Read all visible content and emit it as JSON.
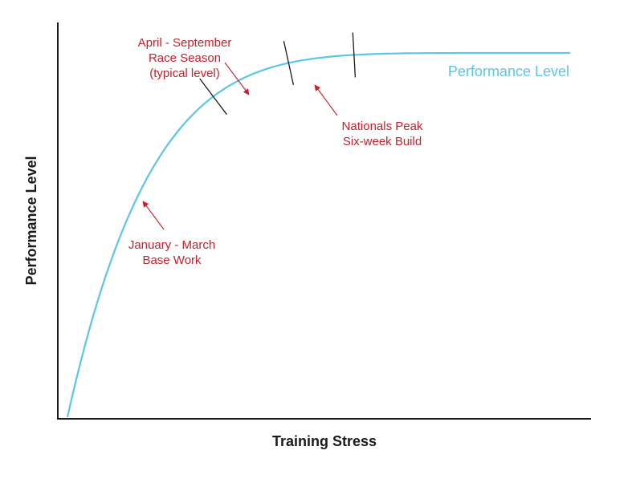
{
  "chart_data": {
    "type": "line",
    "xlabel": "Training Stress",
    "ylabel": "Performance Level",
    "grid": false,
    "series": [
      {
        "name": "Performance Level",
        "color": "#5bc6e8",
        "curve": "concave rising, plateauing",
        "x": [
          0,
          0.05,
          0.1,
          0.2,
          0.3,
          0.4,
          0.5,
          0.6,
          0.7,
          0.8,
          0.9,
          1.0
        ],
        "y": [
          0,
          0.39,
          0.53,
          0.69,
          0.79,
          0.86,
          0.91,
          0.95,
          0.97,
          0.99,
          0.995,
          1.0
        ]
      }
    ],
    "phase_boundaries": [
      0.29,
      0.44,
      0.57
    ],
    "annotations": [
      {
        "lines": [
          "January - March",
          "Base Work"
        ],
        "points_to": 0.12
      },
      {
        "lines": [
          "April - September",
          "Race Season",
          "(typical level)"
        ],
        "points_to": 0.38
      },
      {
        "lines": [
          "Nationals Peak",
          "Six-week Build"
        ],
        "points_to": 0.51
      }
    ],
    "annotation_color": "#c8202e",
    "axis_color": "#1a1a1a"
  }
}
